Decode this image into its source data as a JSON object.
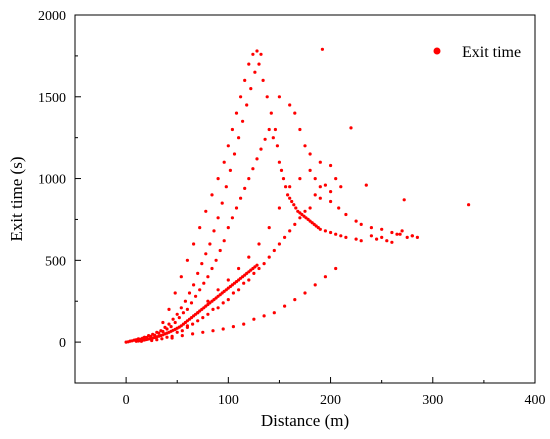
{
  "chart_data": {
    "type": "scatter",
    "title": "",
    "xlabel": "Distance (m)",
    "ylabel": "Exit time (s)",
    "xlim": [
      -50,
      400
    ],
    "ylim": [
      -250,
      2000
    ],
    "x_ticks": [
      0,
      100,
      200,
      300,
      400
    ],
    "y_ticks": [
      0,
      500,
      1000,
      1500,
      2000
    ],
    "grid": false,
    "legend_position": "top-right",
    "series": [
      {
        "name": "Exit time",
        "color": "#ff0000",
        "marker": "circle",
        "points": [
          [
            0,
            0
          ],
          [
            2,
            2
          ],
          [
            4,
            6
          ],
          [
            6,
            8
          ],
          [
            8,
            12
          ],
          [
            10,
            15
          ],
          [
            12,
            20
          ],
          [
            14,
            18
          ],
          [
            16,
            24
          ],
          [
            18,
            30
          ],
          [
            20,
            28
          ],
          [
            22,
            40
          ],
          [
            24,
            35
          ],
          [
            26,
            48
          ],
          [
            28,
            42
          ],
          [
            30,
            60
          ],
          [
            32,
            55
          ],
          [
            34,
            70
          ],
          [
            36,
            65
          ],
          [
            38,
            90
          ],
          [
            40,
            80
          ],
          [
            42,
            110
          ],
          [
            44,
            95
          ],
          [
            46,
            140
          ],
          [
            48,
            120
          ],
          [
            50,
            170
          ],
          [
            52,
            150
          ],
          [
            54,
            210
          ],
          [
            56,
            180
          ],
          [
            58,
            250
          ],
          [
            60,
            200
          ],
          [
            62,
            300
          ],
          [
            64,
            240
          ],
          [
            66,
            350
          ],
          [
            68,
            280
          ],
          [
            70,
            420
          ],
          [
            72,
            320
          ],
          [
            74,
            480
          ],
          [
            76,
            360
          ],
          [
            78,
            540
          ],
          [
            80,
            400
          ],
          [
            82,
            600
          ],
          [
            84,
            450
          ],
          [
            86,
            680
          ],
          [
            88,
            500
          ],
          [
            90,
            760
          ],
          [
            92,
            560
          ],
          [
            94,
            850
          ],
          [
            96,
            620
          ],
          [
            98,
            950
          ],
          [
            100,
            700
          ],
          [
            102,
            1050
          ],
          [
            104,
            760
          ],
          [
            106,
            1150
          ],
          [
            108,
            820
          ],
          [
            110,
            1250
          ],
          [
            112,
            880
          ],
          [
            114,
            1350
          ],
          [
            116,
            940
          ],
          [
            118,
            1450
          ],
          [
            120,
            1000
          ],
          [
            122,
            1550
          ],
          [
            124,
            1060
          ],
          [
            126,
            1650
          ],
          [
            128,
            1120
          ],
          [
            130,
            1700
          ],
          [
            132,
            1180
          ],
          [
            134,
            1600
          ],
          [
            136,
            1240
          ],
          [
            138,
            1500
          ],
          [
            140,
            1300
          ],
          [
            142,
            1400
          ],
          [
            144,
            1250
          ],
          [
            146,
            1300
          ],
          [
            148,
            1200
          ],
          [
            150,
            1100
          ],
          [
            152,
            1050
          ],
          [
            154,
            1000
          ],
          [
            156,
            950
          ],
          [
            158,
            900
          ],
          [
            160,
            880
          ],
          [
            162,
            860
          ],
          [
            164,
            840
          ],
          [
            166,
            820
          ],
          [
            168,
            800
          ],
          [
            170,
            790
          ],
          [
            172,
            780
          ],
          [
            174,
            770
          ],
          [
            176,
            760
          ],
          [
            178,
            750
          ],
          [
            180,
            740
          ],
          [
            182,
            730
          ],
          [
            184,
            720
          ],
          [
            186,
            710
          ],
          [
            188,
            700
          ],
          [
            190,
            690
          ],
          [
            192,
            1790
          ],
          [
            195,
            680
          ],
          [
            200,
            670
          ],
          [
            205,
            660
          ],
          [
            210,
            650
          ],
          [
            215,
            640
          ],
          [
            220,
            1310
          ],
          [
            225,
            630
          ],
          [
            230,
            620
          ],
          [
            235,
            960
          ],
          [
            240,
            650
          ],
          [
            245,
            630
          ],
          [
            250,
            640
          ],
          [
            255,
            620
          ],
          [
            260,
            610
          ],
          [
            265,
            660
          ],
          [
            270,
            680
          ],
          [
            272,
            870
          ],
          [
            275,
            640
          ],
          [
            280,
            650
          ],
          [
            285,
            640
          ],
          [
            335,
            840
          ],
          [
            15,
            5
          ],
          [
            25,
            10
          ],
          [
            35,
            20
          ],
          [
            45,
            25
          ],
          [
            55,
            40
          ],
          [
            65,
            50
          ],
          [
            75,
            60
          ],
          [
            85,
            70
          ],
          [
            95,
            80
          ],
          [
            105,
            95
          ],
          [
            115,
            110
          ],
          [
            125,
            140
          ],
          [
            135,
            160
          ],
          [
            145,
            180
          ],
          [
            155,
            220
          ],
          [
            165,
            260
          ],
          [
            175,
            300
          ],
          [
            185,
            350
          ],
          [
            195,
            400
          ],
          [
            205,
            450
          ],
          [
            60,
            100
          ],
          [
            70,
            130
          ],
          [
            80,
            170
          ],
          [
            90,
            210
          ],
          [
            100,
            260
          ],
          [
            110,
            320
          ],
          [
            120,
            380
          ],
          [
            130,
            450
          ],
          [
            140,
            520
          ],
          [
            150,
            600
          ],
          [
            160,
            680
          ],
          [
            170,
            760
          ],
          [
            180,
            820
          ],
          [
            190,
            880
          ],
          [
            200,
            920
          ],
          [
            210,
            950
          ],
          [
            40,
            30
          ],
          [
            50,
            60
          ],
          [
            60,
            90
          ],
          [
            70,
            180
          ],
          [
            80,
            250
          ],
          [
            90,
            320
          ],
          [
            100,
            380
          ],
          [
            110,
            450
          ],
          [
            120,
            520
          ],
          [
            130,
            600
          ],
          [
            140,
            700
          ],
          [
            150,
            820
          ],
          [
            160,
            950
          ],
          [
            170,
            1000
          ],
          [
            180,
            1050
          ],
          [
            190,
            1100
          ],
          [
            200,
            1080
          ],
          [
            30,
            15
          ],
          [
            45,
            35
          ],
          [
            55,
            70
          ],
          [
            65,
            110
          ],
          [
            75,
            150
          ],
          [
            85,
            200
          ],
          [
            95,
            240
          ],
          [
            105,
            300
          ],
          [
            115,
            360
          ],
          [
            125,
            420
          ],
          [
            135,
            480
          ],
          [
            145,
            560
          ],
          [
            155,
            640
          ],
          [
            165,
            720
          ],
          [
            175,
            800
          ],
          [
            185,
            900
          ],
          [
            195,
            960
          ],
          [
            205,
            1000
          ],
          [
            112,
            1500
          ],
          [
            116,
            1600
          ],
          [
            120,
            1700
          ],
          [
            124,
            1760
          ],
          [
            128,
            1780
          ],
          [
            132,
            1760
          ],
          [
            108,
            1400
          ],
          [
            104,
            1300
          ],
          [
            100,
            1200
          ],
          [
            96,
            1100
          ],
          [
            90,
            1000
          ],
          [
            84,
            900
          ],
          [
            78,
            800
          ],
          [
            72,
            700
          ],
          [
            66,
            600
          ],
          [
            60,
            500
          ],
          [
            54,
            400
          ],
          [
            48,
            300
          ],
          [
            42,
            200
          ],
          [
            36,
            120
          ],
          [
            150,
            1500
          ],
          [
            160,
            1450
          ],
          [
            165,
            1400
          ],
          [
            170,
            1300
          ],
          [
            175,
            1200
          ],
          [
            180,
            1150
          ],
          [
            185,
            1000
          ],
          [
            190,
            950
          ],
          [
            200,
            860
          ],
          [
            208,
            820
          ],
          [
            215,
            780
          ],
          [
            225,
            740
          ],
          [
            230,
            720
          ],
          [
            240,
            700
          ],
          [
            250,
            690
          ],
          [
            260,
            670
          ],
          [
            268,
            660
          ],
          [
            280,
            650
          ],
          [
            10,
            5
          ],
          [
            12,
            7
          ],
          [
            14,
            9
          ],
          [
            16,
            11
          ],
          [
            18,
            13
          ],
          [
            20,
            16
          ],
          [
            22,
            19
          ],
          [
            24,
            22
          ],
          [
            26,
            25
          ],
          [
            28,
            28
          ],
          [
            30,
            32
          ],
          [
            32,
            36
          ],
          [
            34,
            40
          ],
          [
            36,
            45
          ],
          [
            38,
            50
          ],
          [
            40,
            55
          ],
          [
            42,
            60
          ],
          [
            44,
            66
          ],
          [
            46,
            72
          ],
          [
            48,
            78
          ],
          [
            50,
            85
          ],
          [
            52,
            92
          ],
          [
            54,
            100
          ],
          [
            56,
            110
          ],
          [
            58,
            120
          ],
          [
            60,
            130
          ],
          [
            62,
            140
          ],
          [
            64,
            150
          ],
          [
            66,
            160
          ],
          [
            68,
            170
          ],
          [
            70,
            180
          ],
          [
            72,
            190
          ],
          [
            74,
            200
          ],
          [
            76,
            210
          ],
          [
            78,
            220
          ],
          [
            80,
            230
          ],
          [
            82,
            240
          ],
          [
            84,
            250
          ],
          [
            86,
            260
          ],
          [
            88,
            270
          ],
          [
            90,
            280
          ],
          [
            92,
            290
          ],
          [
            94,
            300
          ],
          [
            96,
            310
          ],
          [
            98,
            320
          ],
          [
            100,
            330
          ],
          [
            102,
            340
          ],
          [
            104,
            350
          ],
          [
            106,
            360
          ],
          [
            108,
            370
          ],
          [
            110,
            380
          ],
          [
            112,
            390
          ],
          [
            114,
            400
          ],
          [
            116,
            410
          ],
          [
            118,
            420
          ],
          [
            120,
            430
          ],
          [
            122,
            440
          ],
          [
            124,
            450
          ],
          [
            126,
            460
          ],
          [
            128,
            470
          ]
        ]
      }
    ]
  }
}
